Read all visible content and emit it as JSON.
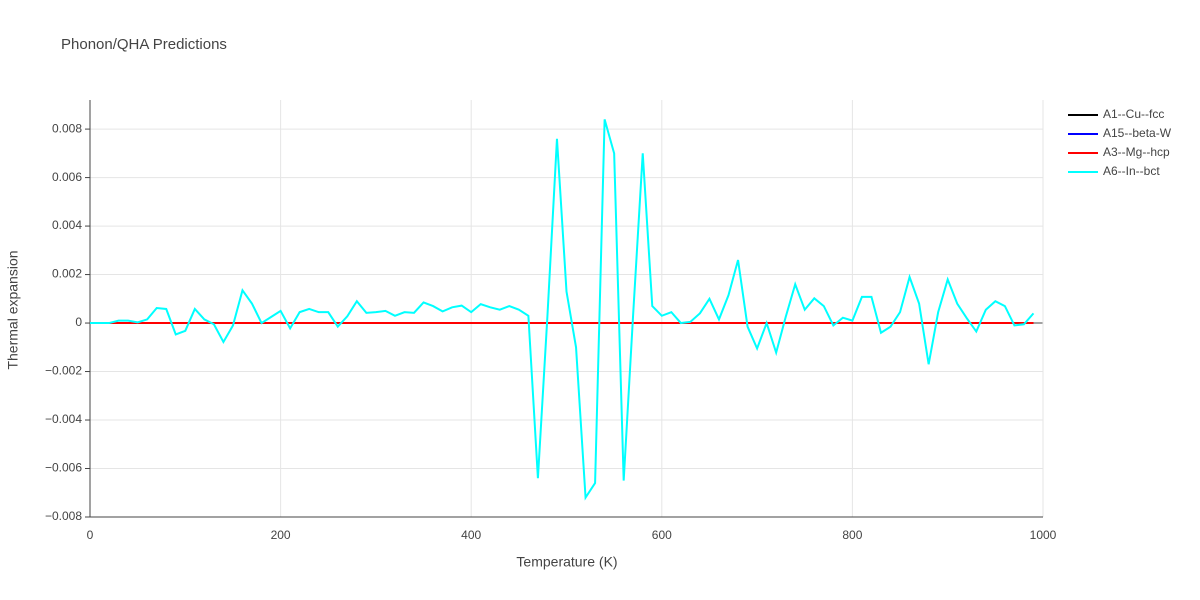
{
  "chart_data": {
    "type": "line",
    "title": "Phonon/QHA Predictions",
    "x_label": "Temperature (K)",
    "y_label": "Thermal expansion",
    "x": [
      0,
      10,
      20,
      30,
      40,
      50,
      60,
      70,
      80,
      90,
      100,
      110,
      120,
      130,
      140,
      150,
      160,
      170,
      180,
      190,
      200,
      210,
      220,
      230,
      240,
      250,
      260,
      270,
      280,
      290,
      300,
      310,
      320,
      330,
      340,
      350,
      360,
      370,
      380,
      390,
      400,
      410,
      420,
      430,
      440,
      450,
      460,
      470,
      480,
      490,
      500,
      510,
      520,
      530,
      540,
      550,
      560,
      570,
      580,
      590,
      600,
      610,
      620,
      630,
      640,
      650,
      660,
      670,
      680,
      690,
      700,
      710,
      720,
      730,
      740,
      750,
      760,
      770,
      780,
      790,
      800,
      810,
      820,
      830,
      840,
      850,
      860,
      870,
      880,
      890,
      900,
      910,
      920,
      930,
      940,
      950,
      960,
      970,
      980,
      990
    ],
    "series": [
      {
        "name": "A1--Cu--fcc",
        "color": "#000000",
        "values": [
          0,
          0,
          0,
          0,
          0,
          0,
          0,
          0,
          0,
          0,
          0,
          0,
          0,
          0,
          0,
          0,
          0,
          0,
          0,
          0,
          0,
          0,
          0,
          0,
          0,
          0,
          0,
          0,
          0,
          0,
          0,
          0,
          0,
          0,
          0,
          0,
          0,
          0,
          0,
          0,
          0,
          0,
          0,
          0,
          0,
          0,
          0,
          0,
          0,
          0,
          0,
          0,
          0,
          0,
          0,
          0,
          0,
          0,
          0,
          0,
          0,
          0,
          0,
          0,
          0,
          0,
          0,
          0,
          0,
          0,
          0,
          0,
          0,
          0,
          0,
          0,
          0,
          0,
          0,
          0,
          0,
          0,
          0,
          0,
          0,
          0,
          0,
          0,
          0,
          0,
          0,
          0,
          0,
          0,
          0,
          0,
          0,
          0,
          0,
          0
        ]
      },
      {
        "name": "A15--beta-W",
        "color": "#0000ff",
        "values": [
          0,
          0,
          0,
          0,
          0,
          0,
          0,
          0,
          0,
          0,
          0,
          0,
          0,
          0,
          0,
          0,
          0,
          0,
          0,
          0,
          0,
          0,
          0,
          0,
          0,
          0,
          0,
          0,
          0,
          0,
          0,
          0,
          0,
          0,
          0,
          0,
          0,
          0,
          0,
          0,
          0,
          0,
          0,
          0,
          0,
          0,
          0,
          0,
          0,
          0,
          0,
          0,
          0,
          0,
          0,
          0,
          0,
          0,
          0,
          0,
          0,
          0,
          0,
          0,
          0,
          0,
          0,
          0,
          0,
          0,
          0,
          0,
          0,
          0,
          0,
          0,
          0,
          0,
          0,
          0,
          0,
          0,
          0,
          0,
          0,
          0,
          0,
          0,
          0,
          0,
          0,
          0,
          0,
          0,
          0,
          0,
          0,
          0,
          0,
          0
        ]
      },
      {
        "name": "A3--Mg--hcp",
        "color": "#ff0000",
        "values": [
          0,
          0,
          0,
          0,
          0,
          0,
          0,
          0,
          0,
          0,
          0,
          0,
          0,
          0,
          0,
          0,
          0,
          0,
          0,
          0,
          0,
          0,
          0,
          0,
          0,
          0,
          0,
          0,
          0,
          0,
          0,
          0,
          0,
          0,
          0,
          0,
          0,
          0,
          0,
          0,
          0,
          0,
          0,
          0,
          0,
          0,
          0,
          0,
          0,
          0,
          0,
          0,
          0,
          0,
          0,
          0,
          0,
          0,
          0,
          0,
          0,
          0,
          0,
          0,
          0,
          0,
          0,
          0,
          0,
          0,
          0,
          0,
          0,
          0,
          0,
          0,
          0,
          0,
          0,
          0,
          0,
          0,
          0,
          0,
          0,
          0,
          0,
          0,
          0,
          0,
          0,
          0,
          0,
          0,
          0,
          0,
          0,
          0,
          0,
          0
        ]
      },
      {
        "name": "A6--In--bct",
        "color": "#00ffff",
        "values": [
          0,
          0,
          0,
          0.0001,
          0.0001,
          3e-05,
          0.00015,
          0.00062,
          0.00058,
          -0.00047,
          -0.00032,
          0.00058,
          0.00015,
          -5e-05,
          -0.00078,
          -0.0001,
          0.00135,
          0.0008,
          0,
          0.00025,
          0.0005,
          -0.00022,
          0.00045,
          0.00058,
          0.00045,
          0.00045,
          -0.00015,
          0.00028,
          0.0009,
          0.00042,
          0.00045,
          0.0005,
          0.0003,
          0.00045,
          0.00042,
          0.00085,
          0.0007,
          0.00048,
          0.00065,
          0.00072,
          0.00045,
          0.00078,
          0.00065,
          0.00055,
          0.0007,
          0.00055,
          0.0003,
          -0.0064,
          0.0003,
          0.0076,
          0.0013,
          -0.001,
          -0.0072,
          -0.0066,
          0.0084,
          0.007,
          -0.0065,
          0.0004,
          0.007,
          0.0007,
          0.0003,
          0.00045,
          0,
          5e-05,
          0.0004,
          0.001,
          0.00015,
          0.00115,
          0.0026,
          -0.00015,
          -0.00105,
          0,
          -0.00122,
          0.00025,
          0.0016,
          0.00055,
          0.00102,
          0.0007,
          -0.0001,
          0.00022,
          0.0001,
          0.00108,
          0.00108,
          -0.0004,
          -0.00015,
          0.00045,
          0.0019,
          0.0008,
          -0.0017,
          0.00045,
          0.0018,
          0.0008,
          0.0002,
          -0.00035,
          0.00055,
          0.0009,
          0.0007,
          -0.0001,
          -5e-05,
          0.0004
        ]
      }
    ],
    "xlim": [
      0,
      1000
    ],
    "xticks": [
      0,
      200,
      400,
      600,
      800,
      1000
    ],
    "ylim": [
      -0.008,
      0.0092
    ],
    "yticks": [
      {
        "value": -0.008,
        "label": "−0.008"
      },
      {
        "value": -0.006,
        "label": "−0.006"
      },
      {
        "value": -0.004,
        "label": "−0.004"
      },
      {
        "value": -0.002,
        "label": "−0.002"
      },
      0,
      0.002,
      0.004,
      0.006,
      0.008
    ],
    "grid": true,
    "legend": "right"
  }
}
